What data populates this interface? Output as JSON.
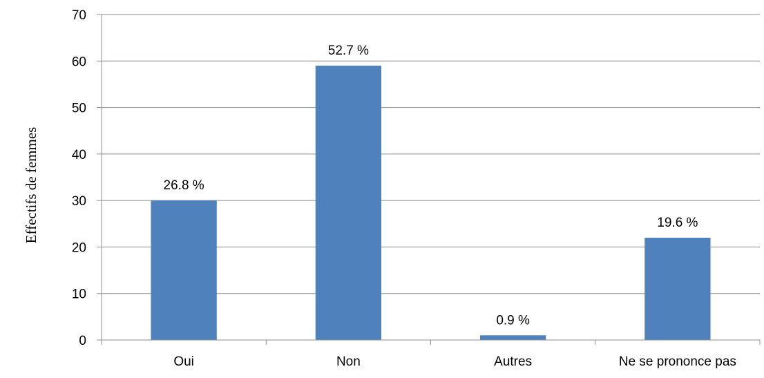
{
  "chart_data": {
    "type": "bar",
    "categories": [
      "Oui",
      "Non",
      "Autres",
      "Ne se prononce pas"
    ],
    "values": [
      30,
      59,
      1,
      22
    ],
    "data_labels": [
      "26.8 %",
      "52.7 %",
      "0.9 %",
      "19.6 %"
    ],
    "ylabel": "Effectifs de femmes",
    "ylim": [
      0,
      70
    ],
    "yticks": [
      0,
      10,
      20,
      30,
      40,
      50,
      60,
      70
    ],
    "grid": "horizontal",
    "bar_color": "#4F81BD",
    "grid_color": "#8C8C8C",
    "axis_color": "#8C8C8C"
  }
}
